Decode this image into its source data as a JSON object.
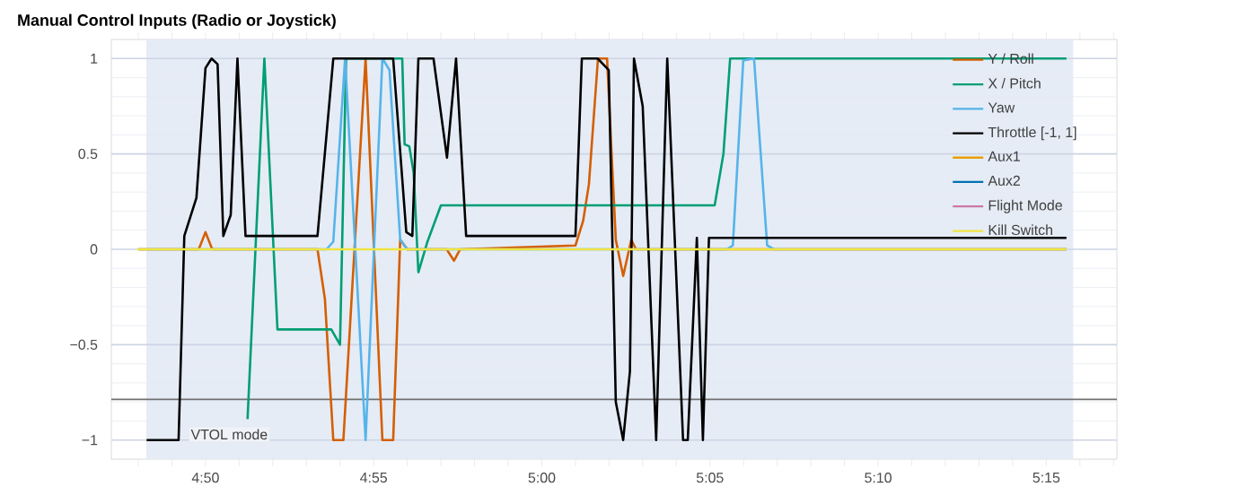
{
  "chart_data": {
    "type": "line",
    "title": "Manual Control Inputs (Radio or Joystick)",
    "xlim": [
      287.2,
      317.1
    ],
    "ylim": [
      -1.1,
      1.1
    ],
    "xticks": [
      {
        "value": 288,
        "label": null
      },
      {
        "value": 289,
        "label": null
      },
      {
        "value": 290,
        "label": "4:50"
      },
      {
        "value": 291,
        "label": null
      },
      {
        "value": 292,
        "label": null
      },
      {
        "value": 293,
        "label": null
      },
      {
        "value": 294,
        "label": null
      },
      {
        "value": 295,
        "label": "4:55"
      },
      {
        "value": 296,
        "label": null
      },
      {
        "value": 297,
        "label": null
      },
      {
        "value": 298,
        "label": null
      },
      {
        "value": 299,
        "label": null
      },
      {
        "value": 300,
        "label": "5:00"
      },
      {
        "value": 301,
        "label": null
      },
      {
        "value": 302,
        "label": null
      },
      {
        "value": 303,
        "label": null
      },
      {
        "value": 304,
        "label": null
      },
      {
        "value": 305,
        "label": "5:05"
      },
      {
        "value": 306,
        "label": null
      },
      {
        "value": 307,
        "label": null
      },
      {
        "value": 308,
        "label": null
      },
      {
        "value": 309,
        "label": null
      },
      {
        "value": 310,
        "label": "5:10"
      },
      {
        "value": 311,
        "label": null
      },
      {
        "value": 312,
        "label": null
      },
      {
        "value": 313,
        "label": null
      },
      {
        "value": 314,
        "label": null
      },
      {
        "value": 315,
        "label": "5:15"
      },
      {
        "value": 316,
        "label": null
      },
      {
        "value": 317,
        "label": null
      }
    ],
    "yticks": [
      {
        "value": -1,
        "label": "−1"
      },
      {
        "value": -0.9,
        "label": null
      },
      {
        "value": -0.8,
        "label": null
      },
      {
        "value": -0.7,
        "label": null
      },
      {
        "value": -0.6,
        "label": null
      },
      {
        "value": -0.5,
        "label": "−0.5"
      },
      {
        "value": -0.4,
        "label": null
      },
      {
        "value": -0.3,
        "label": null
      },
      {
        "value": -0.2,
        "label": null
      },
      {
        "value": -0.1,
        "label": null
      },
      {
        "value": 0,
        "label": "0"
      },
      {
        "value": 0.1,
        "label": null
      },
      {
        "value": 0.2,
        "label": null
      },
      {
        "value": 0.3,
        "label": null
      },
      {
        "value": 0.4,
        "label": null
      },
      {
        "value": 0.5,
        "label": "0.5"
      },
      {
        "value": 0.6,
        "label": null
      },
      {
        "value": 0.7,
        "label": null
      },
      {
        "value": 0.8,
        "label": null
      },
      {
        "value": 0.9,
        "label": null
      },
      {
        "value": 1,
        "label": "1"
      }
    ],
    "grid": "y",
    "legend": "top right",
    "bands": [
      {
        "axis": "x",
        "from": 288.24,
        "to": 315.8,
        "color": "#e5ecf6"
      }
    ],
    "ref_lines": [
      {
        "axis": "y",
        "value": -0.787,
        "color": "#707070"
      }
    ],
    "annotations": [
      {
        "text": "VTOL mode",
        "x": 289.5,
        "y": -0.97
      }
    ],
    "series": [
      {
        "name": "Y / Roll",
        "color": "#d55e00",
        "x": [
          288.0,
          289.8,
          290.0,
          290.2,
          293.33,
          293.55,
          293.8,
          294.1,
          294.76,
          295.26,
          295.58,
          295.79,
          296.0,
          297.17,
          297.39,
          297.57,
          301.0,
          301.23,
          301.4,
          301.67,
          301.94,
          302.2,
          302.42,
          302.66,
          302.8,
          315.6
        ],
        "values": [
          0,
          0,
          0.09,
          0,
          0,
          -0.26,
          -1,
          -1,
          1,
          -1,
          -1,
          0.05,
          0,
          0,
          -0.06,
          0,
          0.02,
          0.15,
          0.34,
          1,
          1,
          0.05,
          -0.14,
          0.05,
          0,
          0
        ]
      },
      {
        "name": "X / Pitch",
        "color": "#009e73",
        "x": [
          291.25,
          291.75,
          292.14,
          293.74,
          294.0,
          294.18,
          295.85,
          295.92,
          296.06,
          296.19,
          296.33,
          296.6,
          297.0,
          305.14,
          305.4,
          305.6,
          315.6
        ],
        "values": [
          -0.89,
          1,
          -0.42,
          -0.42,
          -0.5,
          1,
          1,
          0.55,
          0.54,
          0.4,
          -0.12,
          0.04,
          0.23,
          0.23,
          0.5,
          1,
          1
        ]
      },
      {
        "name": "Yaw",
        "color": "#56b4e9",
        "x": [
          288.0,
          293.6,
          293.8,
          294.15,
          294.76,
          295.26,
          295.47,
          295.79,
          296.0,
          305.5,
          305.68,
          305.99,
          306.31,
          306.7,
          306.9,
          315.6
        ],
        "values": [
          0,
          0,
          0.04,
          1,
          -1,
          1,
          0.94,
          0.05,
          0,
          0,
          0.02,
          0.99,
          1,
          0.02,
          0,
          0
        ]
      },
      {
        "name": "Throttle [-1, 1]",
        "color": "#000000",
        "x": [
          288.25,
          289.2,
          289.37,
          289.73,
          290.0,
          290.18,
          290.36,
          290.53,
          290.75,
          290.95,
          291.19,
          293.33,
          293.8,
          295.58,
          295.97,
          296.15,
          296.33,
          296.78,
          297.18,
          297.45,
          297.75,
          301.0,
          301.19,
          301.66,
          301.99,
          302.2,
          302.42,
          302.62,
          302.74,
          303.0,
          303.4,
          303.73,
          304.2,
          304.34,
          304.61,
          304.79,
          304.97,
          315.6
        ],
        "values": [
          -1,
          -1,
          0.07,
          0.27,
          0.95,
          1,
          0.97,
          0.07,
          0.18,
          1,
          0.07,
          0.07,
          1,
          1,
          0.09,
          0.07,
          1,
          1,
          0.48,
          1,
          0.07,
          0.07,
          1,
          1,
          0.94,
          -0.8,
          -1,
          -0.64,
          1,
          0.75,
          -1,
          1,
          -1,
          -1,
          0.06,
          -1,
          0.06,
          0.06
        ]
      },
      {
        "name": "Aux1",
        "color": "#e69f00"
      },
      {
        "name": "Aux2",
        "color": "#0072b2"
      },
      {
        "name": "Flight Mode",
        "color": "#cc79a7"
      },
      {
        "name": "Kill Switch",
        "color": "#f0e442",
        "x": [
          287.97,
          315.6
        ],
        "values": [
          0,
          0
        ]
      }
    ]
  }
}
